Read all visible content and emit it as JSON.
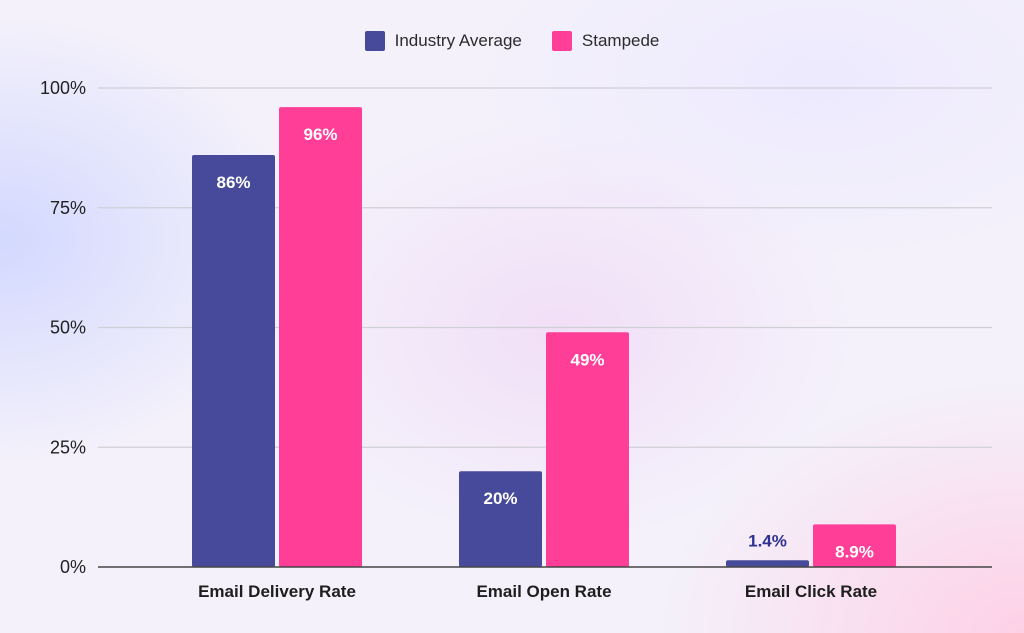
{
  "chart_data": {
    "type": "bar",
    "categories": [
      "Email Delivery Rate",
      "Email Open Rate",
      "Email Click Rate"
    ],
    "series": [
      {
        "name": "Industry Average",
        "color": "#474a9a",
        "values": [
          86,
          20,
          1.4
        ],
        "labels": [
          "86%",
          "20%",
          "1.4%"
        ]
      },
      {
        "name": "Stampede",
        "color": "#ff3e97",
        "values": [
          96,
          49,
          8.9
        ],
        "labels": [
          "96%",
          "49%",
          "8.9%"
        ]
      }
    ],
    "y_ticks": [
      {
        "value": 0,
        "label": "0%"
      },
      {
        "value": 25,
        "label": "25%"
      },
      {
        "value": 50,
        "label": "50%"
      },
      {
        "value": 75,
        "label": "75%"
      },
      {
        "value": 100,
        "label": "100%"
      }
    ],
    "ylim": [
      0,
      100
    ],
    "title": "",
    "xlabel": "",
    "ylabel": "",
    "grid": true,
    "legend": "top-center",
    "colors": {
      "grid": "#cfcfd6",
      "axis": "#444444",
      "tick_text": "#222222",
      "category_text": "#1e1e1e",
      "label_inside": "#ffffff",
      "label_outside_industry": "#2e3192"
    }
  }
}
